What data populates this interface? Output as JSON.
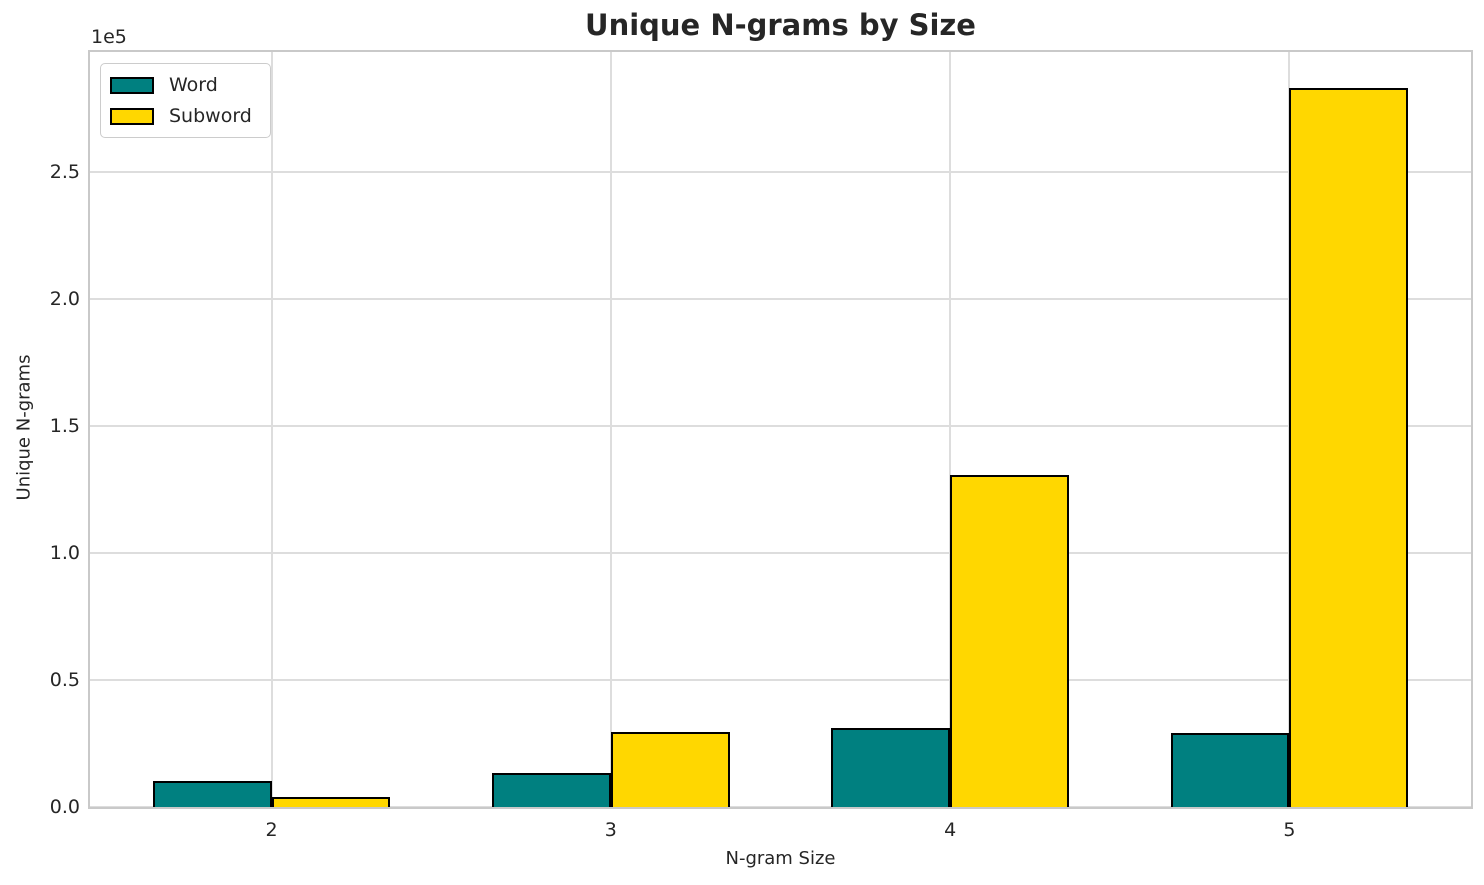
{
  "title": "Unique N-grams by Size",
  "offset_label": "1e5",
  "colors": {
    "word": "#008080",
    "subword": "#FFD700",
    "bar_edge": "#000000",
    "grid": "#dddddd",
    "spine": "#c9c9c9",
    "text": "#262626",
    "background": "#ffffff"
  },
  "legend": {
    "position": "upper left",
    "items": [
      {
        "label": "Word",
        "color": "#008080"
      },
      {
        "label": "Subword",
        "color": "#FFD700"
      }
    ]
  },
  "chart_data": {
    "type": "bar",
    "title": "Unique N-grams by Size",
    "xlabel": "N-gram Size",
    "ylabel": "Unique N-grams",
    "categories": [
      2,
      3,
      4,
      5
    ],
    "series": [
      {
        "name": "Word",
        "color": "#008080",
        "values": [
          10400,
          13200,
          31100,
          29000
        ]
      },
      {
        "name": "Subword",
        "color": "#FFD700",
        "values": [
          3800,
          29400,
          130700,
          283100
        ]
      }
    ],
    "bar_width": 0.35,
    "xlim": [
      1.465,
      5.535
    ],
    "ylim": [
      0,
      297300
    ],
    "xticks": [
      2,
      3,
      4,
      5
    ],
    "xtick_labels": [
      "2",
      "3",
      "4",
      "5"
    ],
    "ytick_values": [
      0,
      50000,
      100000,
      150000,
      200000,
      250000
    ],
    "ytick_labels": [
      "0.0",
      "0.5",
      "1.0",
      "1.5",
      "2.0",
      "2.5"
    ],
    "ytick_offset_label": "1e5",
    "grid": true,
    "legend_position": "upper left"
  }
}
